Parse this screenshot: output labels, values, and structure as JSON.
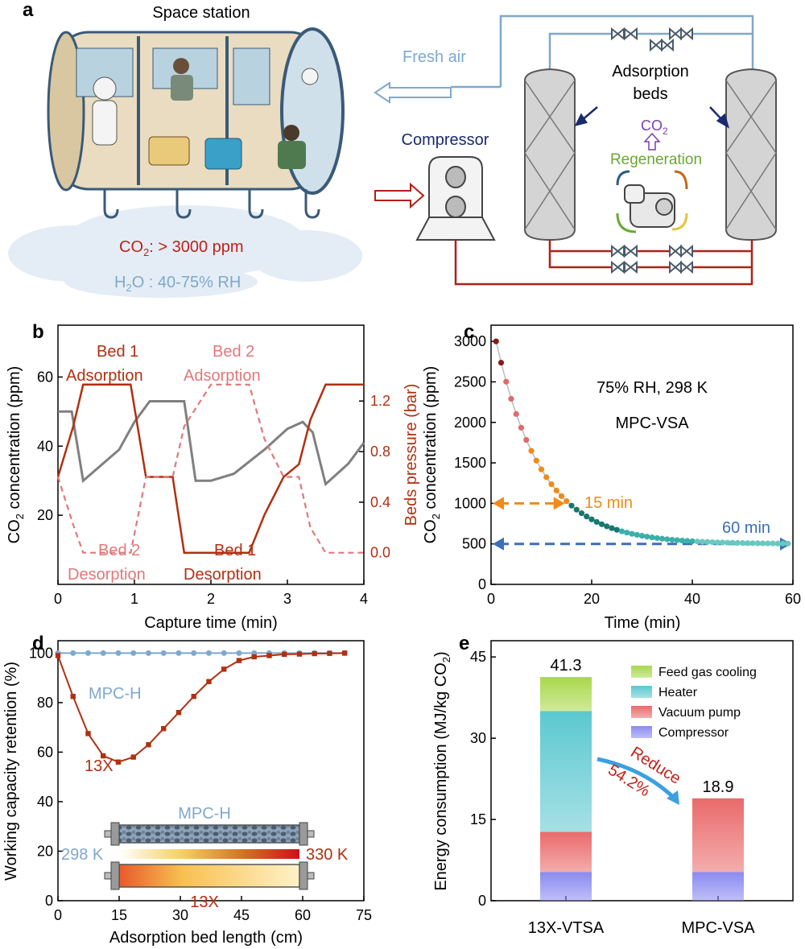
{
  "colors": {
    "dark_red": "#b03010",
    "red": "#c8301c",
    "pink": "#e0787a",
    "grey": "#808080",
    "blue_light": "#7fa8cc",
    "navy": "#1a2a70",
    "orange": "#f08a1a",
    "teal": "#2a9b8e",
    "blue_dash": "#3b6fb6",
    "green": "#6aa832",
    "purple": "#7a3fb0",
    "feed": "#a8d84a",
    "heater": "#5cc8d0",
    "vacuum": "#ea6a6a",
    "compressor": "#8a8af0"
  },
  "panel_a": {
    "letter": "a",
    "station_title": "Space station",
    "co2_label": "CO",
    "co2_sub": "2",
    "co2_value": ":  > 3000 ppm",
    "h2o_label": "H",
    "h2o_sub": "2",
    "h2o_value": "O : 40-75% RH",
    "fresh_air": "Fresh air",
    "compressor": "Compressor",
    "beds_line1": "Adsorption",
    "beds_line2": "beds",
    "co2_out": "CO",
    "co2_out_sub": "2",
    "regeneration": "Regeneration"
  },
  "panel_b": {
    "letter": "b",
    "bed1_ads_1": "Bed 1",
    "bed1_ads_2": "Adsorption",
    "bed2_ads_1": "Bed 2",
    "bed2_ads_2": "Adsorption",
    "bed2_des_1": "Bed 2",
    "bed2_des_2": "Desorption",
    "bed1_des_1": "Bed 1",
    "bed1_des_2": "Desorption"
  },
  "panel_c": {
    "letter": "c",
    "cond_1": "75% RH, 298 K",
    "cond_2": "MPC-VSA",
    "mark_15": "15 min",
    "mark_60": "60 min"
  },
  "panel_d": {
    "letter": "d",
    "label_mpc": "MPC-H",
    "label_13x": "13X",
    "inset_mpc": "MPC-H",
    "inset_13x": "13X",
    "temp_low": "298 K",
    "temp_high": "330 K"
  },
  "panel_e": {
    "letter": "e",
    "reduce": "Reduce",
    "percent": "54.2%"
  },
  "chart_data": [
    {
      "id": "b",
      "type": "line",
      "xlabel": "Capture time (min)",
      "ylabel": "CO2 concentration (ppm)",
      "ylabel_parts": [
        "CO",
        "2",
        " concentration (ppm)"
      ],
      "y2label": "Beds pressure (bar)",
      "xlim": [
        0,
        4
      ],
      "ylim": [
        0,
        75
      ],
      "y2lim": [
        -0.25,
        1.8
      ],
      "xticks": [
        0,
        1,
        2,
        3,
        4
      ],
      "xtick_labels": [
        "0",
        "1",
        "2",
        "3",
        "4"
      ],
      "yticks": [
        20,
        40,
        60
      ],
      "ytick_labels": [
        "20",
        "40",
        "60"
      ],
      "y2ticks": [
        0.0,
        0.4,
        0.8,
        1.2
      ],
      "y2tick_labels": [
        "0.0",
        "0.4",
        "0.8",
        "1.2"
      ],
      "series": [
        {
          "name": "CO2 concentration",
          "axis": "left",
          "style": "solid-grey",
          "x": [
            0,
            0.18,
            0.33,
            0.8,
            1.0,
            1.2,
            1.5,
            1.65,
            1.8,
            2.0,
            2.3,
            2.7,
            3.0,
            3.2,
            3.33,
            3.5,
            3.8,
            4.0
          ],
          "y": [
            50,
            50,
            30,
            39,
            47,
            53,
            53,
            53,
            30,
            30,
            32,
            39,
            45,
            47,
            44,
            29,
            35,
            41
          ]
        },
        {
          "name": "Bed 1 pressure",
          "axis": "right",
          "style": "solid-red",
          "x": [
            0,
            0.2,
            0.33,
            0.95,
            1.15,
            1.5,
            1.65,
            2.0,
            2.5,
            2.7,
            2.95,
            3.15,
            3.3,
            3.5,
            4.0
          ],
          "y": [
            0.6,
            1.0,
            1.33,
            1.33,
            0.6,
            0.6,
            0.0,
            0.0,
            0.0,
            0.3,
            0.6,
            0.7,
            1.05,
            1.33,
            1.33
          ]
        },
        {
          "name": "Bed 2 pressure",
          "axis": "right",
          "style": "dashed-pink",
          "x": [
            0,
            0.2,
            0.33,
            0.95,
            1.15,
            1.5,
            1.65,
            2.0,
            2.5,
            2.7,
            2.95,
            3.15,
            3.3,
            3.5,
            4.0
          ],
          "y": [
            0.6,
            0.22,
            0.0,
            0.0,
            0.6,
            0.6,
            1.0,
            1.33,
            1.33,
            0.9,
            0.6,
            0.6,
            0.2,
            0.0,
            0.0
          ]
        }
      ]
    },
    {
      "id": "c",
      "type": "scatter",
      "xlabel": "Time (min)",
      "ylabel": "CO2 concentration (ppm)",
      "ylabel_parts": [
        "CO",
        "2",
        " concentration (ppm)"
      ],
      "xlim": [
        0,
        60
      ],
      "ylim": [
        0,
        3200
      ],
      "xticks": [
        0,
        20,
        40,
        60
      ],
      "xtick_labels": [
        "0",
        "20",
        "40",
        "60"
      ],
      "yticks": [
        0,
        500,
        1000,
        1500,
        2000,
        2500,
        3000
      ],
      "ytick_labels": [
        "0",
        "500",
        "1000",
        "1500",
        "2000",
        "2500",
        "3000"
      ],
      "model": {
        "baseline": 500,
        "initial": 3000,
        "tau": 9.0,
        "x_start": 1,
        "x_end": 59,
        "step": 1
      },
      "annotations": [
        {
          "label": "15 min",
          "x": 15,
          "y": 1000
        },
        {
          "label": "60 min",
          "x": 59,
          "y": 500
        }
      ]
    },
    {
      "id": "d",
      "type": "line",
      "xlabel": "Adsorption bed length (cm)",
      "ylabel": "Working capacity retention (%)",
      "xlim": [
        0,
        75
      ],
      "ylim": [
        0,
        105
      ],
      "xticks": [
        0,
        15,
        30,
        45,
        60,
        75
      ],
      "xtick_labels": [
        "0",
        "15",
        "30",
        "45",
        "60",
        "75"
      ],
      "yticks": [
        0,
        20,
        40,
        60,
        80,
        100
      ],
      "ytick_labels": [
        "0",
        "20",
        "40",
        "60",
        "80",
        "100"
      ],
      "series": [
        {
          "name": "MPC-H",
          "x": [
            0,
            3.7,
            7.4,
            11.1,
            14.8,
            18.5,
            22.2,
            25.9,
            29.6,
            33.3,
            37.0,
            40.7,
            44.4,
            48.1,
            51.8,
            55.5,
            59.2,
            62.9,
            66.6,
            70.3
          ],
          "y": [
            100,
            100,
            100,
            100,
            100,
            100,
            100,
            100,
            100,
            100,
            100,
            100,
            100,
            100,
            100,
            100,
            100,
            100,
            100,
            100
          ]
        },
        {
          "name": "13X",
          "x": [
            0,
            3.7,
            7.4,
            11.1,
            14.8,
            18.5,
            22.2,
            25.9,
            29.6,
            33.3,
            37.0,
            40.7,
            44.4,
            48.1,
            51.8,
            55.5,
            59.2,
            62.9,
            66.6,
            70.3
          ],
          "y": [
            99,
            82.5,
            67.5,
            58.5,
            56,
            58,
            63,
            69.5,
            76,
            82.5,
            88.5,
            93.5,
            97,
            98.5,
            99,
            99.5,
            99.6,
            99.8,
            99.9,
            100
          ]
        }
      ]
    },
    {
      "id": "e",
      "type": "bar",
      "stacked": true,
      "ylabel": "Energy consumption (MJ/kg CO2)",
      "ylabel_parts": [
        "Energy consumption (MJ/kg CO",
        "2",
        ")"
      ],
      "categories": [
        "13X-VTSA",
        "MPC-VSA"
      ],
      "ylim": [
        0,
        48
      ],
      "yticks": [
        0,
        15,
        30,
        45
      ],
      "ytick_labels": [
        "0",
        "15",
        "30",
        "45"
      ],
      "totals": [
        "41.3",
        "18.9"
      ],
      "series": [
        {
          "name": "Compressor",
          "values": [
            5.3,
            5.3
          ]
        },
        {
          "name": "Vacuum pump",
          "values": [
            7.4,
            13.6
          ]
        },
        {
          "name": "Heater",
          "values": [
            22.3,
            0
          ]
        },
        {
          "name": "Feed gas cooling",
          "values": [
            6.3,
            0
          ]
        }
      ],
      "legend_order": [
        "Feed gas cooling",
        "Heater",
        "Vacuum pump",
        "Compressor"
      ]
    }
  ]
}
